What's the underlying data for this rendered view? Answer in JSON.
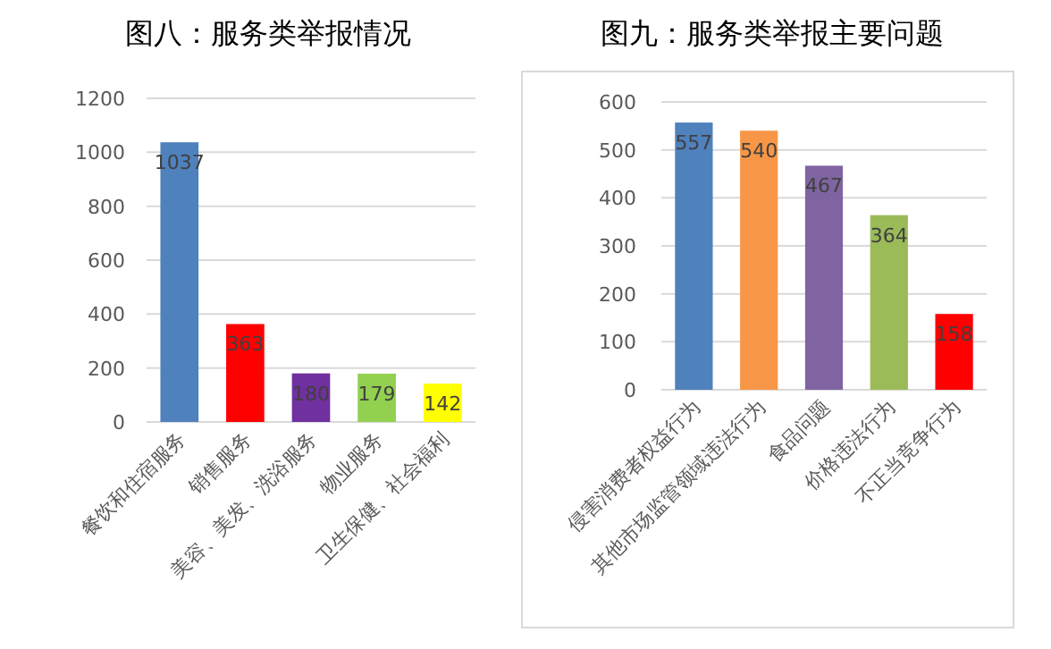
{
  "chart_data": [
    {
      "type": "bar",
      "title": "图八：服务类举报情况",
      "categories": [
        "餐饮和住宿服务",
        "销售服务",
        "美容、美发、洗浴服务",
        "物业服务",
        "卫生保健、社会福利"
      ],
      "values": [
        1037,
        363,
        180,
        179,
        142
      ],
      "colors": [
        "#4f81bd",
        "#ff0000",
        "#7030a0",
        "#92d050",
        "#ffff00"
      ],
      "ylim": [
        0,
        1200
      ],
      "yticks": [
        0,
        200,
        400,
        600,
        800,
        1000,
        1200
      ],
      "grid": "y",
      "data_labels": true
    },
    {
      "type": "bar",
      "title": "图九：服务类举报主要问题",
      "categories": [
        "侵害消费者权益行为",
        "其他市场监管领域违法行为",
        "食品问题",
        "价格违法行为",
        "不正当竞争行为"
      ],
      "values": [
        557,
        540,
        467,
        364,
        158
      ],
      "colors": [
        "#4f81bd",
        "#f79646",
        "#8064a2",
        "#9bbb59",
        "#ff0000"
      ],
      "ylim": [
        0,
        600
      ],
      "yticks": [
        0,
        100,
        200,
        300,
        400,
        500,
        600
      ],
      "grid": "y",
      "data_labels": true
    }
  ]
}
